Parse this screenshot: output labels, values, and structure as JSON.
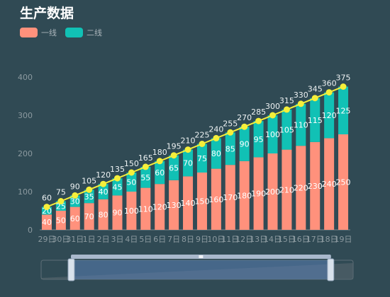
{
  "title": "生产数据",
  "legend": [
    {
      "name": "一线",
      "color": "#ff917c"
    },
    {
      "name": "二线",
      "color": "#11c1b5"
    }
  ],
  "colors": {
    "line": "#f5ef3a",
    "dot": "#f5ef3a"
  },
  "chart_data": {
    "type": "bar",
    "title": "生产数据",
    "categories": [
      "29日",
      "30日",
      "31日",
      "1日",
      "2日",
      "3日",
      "4日",
      "5日",
      "6日",
      "7日",
      "8日",
      "9日",
      "10日",
      "11日",
      "12日",
      "13日",
      "14日",
      "15日",
      "16日",
      "17日",
      "18日",
      "19日"
    ],
    "series": [
      {
        "name": "一线",
        "type": "bar",
        "stack": "total",
        "values": [
          40,
          50,
          60,
          70,
          80,
          90,
          100,
          110,
          120,
          130,
          140,
          150,
          160,
          170,
          180,
          190,
          200,
          210,
          220,
          230,
          240,
          250
        ]
      },
      {
        "name": "二线",
        "type": "bar",
        "stack": "total",
        "values": [
          20,
          25,
          30,
          35,
          40,
          45,
          50,
          55,
          60,
          65,
          70,
          75,
          80,
          85,
          90,
          95,
          100,
          105,
          110,
          115,
          120,
          125
        ]
      },
      {
        "name": "",
        "type": "line",
        "values": [
          60,
          75,
          90,
          105,
          120,
          135,
          150,
          165,
          180,
          195,
          210,
          225,
          240,
          255,
          270,
          285,
          300,
          315,
          330,
          345,
          360,
          375
        ]
      }
    ],
    "yticks": [
      0,
      100,
      200,
      300,
      400
    ],
    "ylim": [
      0,
      450
    ],
    "grid": false,
    "legend_position": "top-left",
    "datazoom": {
      "start_fraction": 0.1,
      "end_fraction": 0.92
    }
  }
}
